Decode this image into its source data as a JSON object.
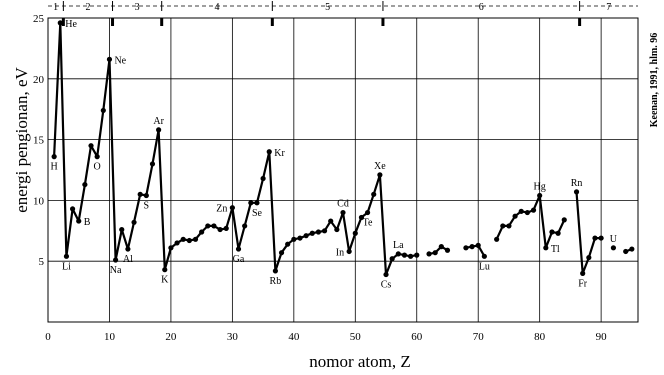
{
  "chart_data": {
    "type": "line",
    "title": "",
    "xlabel": "nomor atom, Z",
    "ylabel": "energi pengionan, eV",
    "source": "Keenan, 1991, hlm. 96",
    "xlim": [
      0,
      96
    ],
    "ylim": [
      0,
      25
    ],
    "xticks": [
      0,
      10,
      20,
      30,
      40,
      50,
      60,
      70,
      80,
      90
    ],
    "yticks": [
      5,
      10,
      15,
      20,
      25
    ],
    "grid": true,
    "segments": [
      [
        [
          1,
          13.6
        ],
        [
          2,
          24.6
        ],
        [
          3,
          5.4
        ],
        [
          4,
          9.3
        ],
        [
          5,
          8.3
        ],
        [
          6,
          11.3
        ],
        [
          7,
          14.5
        ],
        [
          8,
          13.6
        ],
        [
          9,
          17.4
        ],
        [
          10,
          21.6
        ],
        [
          11,
          5.1
        ],
        [
          12,
          7.6
        ],
        [
          13,
          6.0
        ],
        [
          14,
          8.2
        ],
        [
          15,
          10.5
        ],
        [
          16,
          10.4
        ],
        [
          17,
          13.0
        ],
        [
          18,
          15.8
        ],
        [
          19,
          4.3
        ],
        [
          20,
          6.1
        ],
        [
          21,
          6.5
        ],
        [
          22,
          6.8
        ],
        [
          23,
          6.7
        ],
        [
          24,
          6.8
        ],
        [
          25,
          7.4
        ],
        [
          26,
          7.9
        ],
        [
          27,
          7.9
        ],
        [
          28,
          7.6
        ],
        [
          29,
          7.7
        ],
        [
          30,
          9.4
        ],
        [
          31,
          6.0
        ],
        [
          32,
          7.9
        ],
        [
          33,
          9.8
        ],
        [
          34,
          9.8
        ],
        [
          35,
          11.8
        ],
        [
          36,
          14.0
        ],
        [
          37,
          4.2
        ],
        [
          38,
          5.7
        ],
        [
          39,
          6.4
        ],
        [
          40,
          6.8
        ],
        [
          41,
          6.9
        ],
        [
          42,
          7.1
        ],
        [
          43,
          7.3
        ],
        [
          44,
          7.4
        ],
        [
          45,
          7.5
        ],
        [
          46,
          8.3
        ],
        [
          47,
          7.6
        ],
        [
          48,
          9.0
        ],
        [
          49,
          5.8
        ],
        [
          50,
          7.3
        ],
        [
          51,
          8.6
        ],
        [
          52,
          9.0
        ],
        [
          53,
          10.5
        ],
        [
          54,
          12.1
        ],
        [
          55,
          3.9
        ],
        [
          56,
          5.2
        ],
        [
          57,
          5.6
        ],
        [
          58,
          5.5
        ],
        [
          59,
          5.4
        ],
        [
          60,
          5.5
        ]
      ],
      [
        [
          62,
          5.6
        ],
        [
          63,
          5.7
        ],
        [
          64,
          6.2
        ],
        [
          65,
          5.9
        ]
      ],
      [
        [
          68,
          6.1
        ],
        [
          69,
          6.2
        ],
        [
          70,
          6.3
        ],
        [
          71,
          5.4
        ]
      ],
      [
        [
          73,
          6.8
        ],
        [
          74,
          7.9
        ],
        [
          75,
          7.9
        ],
        [
          76,
          8.7
        ],
        [
          77,
          9.1
        ],
        [
          78,
          9.0
        ],
        [
          79,
          9.2
        ],
        [
          80,
          10.4
        ],
        [
          81,
          6.1
        ],
        [
          82,
          7.4
        ],
        [
          83,
          7.3
        ],
        [
          84,
          8.4
        ]
      ],
      [
        [
          86,
          10.7
        ],
        [
          87,
          4.0
        ],
        [
          88,
          5.3
        ],
        [
          89,
          6.9
        ],
        [
          90,
          6.9
        ]
      ],
      [
        [
          92,
          6.1
        ]
      ],
      [
        [
          94,
          5.8
        ],
        [
          95,
          6.0
        ]
      ]
    ],
    "element_labels": [
      {
        "name": "H",
        "z": 1,
        "e": 13.6,
        "pos": "below"
      },
      {
        "name": "He",
        "z": 2,
        "e": 24.6,
        "pos": "right"
      },
      {
        "name": "Li",
        "z": 3,
        "e": 5.4,
        "pos": "below"
      },
      {
        "name": "B",
        "z": 5,
        "e": 8.3,
        "pos": "right"
      },
      {
        "name": "O",
        "z": 8,
        "e": 13.6,
        "pos": "below"
      },
      {
        "name": "Ne",
        "z": 10,
        "e": 21.6,
        "pos": "right"
      },
      {
        "name": "Na",
        "z": 11,
        "e": 5.1,
        "pos": "below"
      },
      {
        "name": "Al",
        "z": 13,
        "e": 6.0,
        "pos": "below"
      },
      {
        "name": "S",
        "z": 16,
        "e": 10.4,
        "pos": "below"
      },
      {
        "name": "Ar",
        "z": 18,
        "e": 15.8,
        "pos": "above"
      },
      {
        "name": "K",
        "z": 19,
        "e": 4.3,
        "pos": "below"
      },
      {
        "name": "Zn",
        "z": 30,
        "e": 9.4,
        "pos": "left"
      },
      {
        "name": "Ga",
        "z": 31,
        "e": 6.0,
        "pos": "below"
      },
      {
        "name": "Se",
        "z": 34,
        "e": 9.8,
        "pos": "below"
      },
      {
        "name": "Kr",
        "z": 36,
        "e": 14.0,
        "pos": "right"
      },
      {
        "name": "Rb",
        "z": 37,
        "e": 4.2,
        "pos": "below"
      },
      {
        "name": "Cd",
        "z": 48,
        "e": 9.0,
        "pos": "above"
      },
      {
        "name": "In",
        "z": 49,
        "e": 5.8,
        "pos": "left"
      },
      {
        "name": "Te",
        "z": 52,
        "e": 9.0,
        "pos": "below"
      },
      {
        "name": "Xe",
        "z": 54,
        "e": 12.1,
        "pos": "above"
      },
      {
        "name": "La",
        "z": 57,
        "e": 5.6,
        "pos": "above"
      },
      {
        "name": "Cs",
        "z": 55,
        "e": 3.9,
        "pos": "below"
      },
      {
        "name": "Lu",
        "z": 71,
        "e": 5.4,
        "pos": "below"
      },
      {
        "name": "Hg",
        "z": 80,
        "e": 10.4,
        "pos": "above"
      },
      {
        "name": "Tl",
        "z": 81,
        "e": 6.1,
        "pos": "right"
      },
      {
        "name": "Rn",
        "z": 86,
        "e": 10.7,
        "pos": "above"
      },
      {
        "name": "Fr",
        "z": 87,
        "e": 4.0,
        "pos": "below"
      },
      {
        "name": "U",
        "z": 92,
        "e": 6.1,
        "pos": "above"
      }
    ],
    "periods": {
      "labels": [
        "1",
        "2",
        "3",
        "4",
        "5",
        "6",
        "7"
      ],
      "boundaries": [
        0,
        2.5,
        10.5,
        18.5,
        36.5,
        54.5,
        86.5,
        96
      ]
    },
    "colors": {
      "line": "#000000",
      "grid": "#000000",
      "background": "#ffffff"
    }
  }
}
